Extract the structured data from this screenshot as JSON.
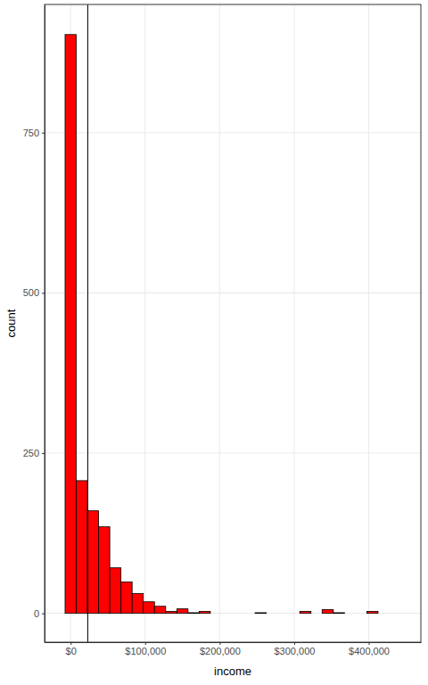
{
  "chart_data": {
    "type": "histogram",
    "x_label": "income",
    "y_label": "count",
    "bins": [
      -7500,
      7500,
      22500,
      37500,
      52500,
      67500,
      82500,
      97500,
      112500,
      127500,
      142500,
      157500,
      172500,
      187500,
      202500,
      217500,
      232500,
      247500,
      262500,
      277500,
      292500,
      307500,
      322500,
      337500,
      352500,
      367500,
      382500,
      397500,
      412500,
      427500,
      442500
    ],
    "values": [
      903,
      207,
      160,
      135,
      71,
      49,
      31,
      18,
      11,
      3,
      7,
      1,
      3,
      0,
      0,
      0,
      0,
      1,
      0,
      0,
      0,
      3,
      0,
      6,
      1,
      0,
      0,
      3,
      0,
      0
    ],
    "color": "#ff0000",
    "vline": 23000,
    "xlim": [
      -35000,
      470000
    ],
    "ylim": [
      -45,
      950
    ],
    "xticks": [
      {
        "value": 0,
        "label": "$0"
      },
      {
        "value": 100000,
        "label": "$100,000"
      },
      {
        "value": 200000,
        "label": "$200,000"
      },
      {
        "value": 300000,
        "label": "$300,000"
      },
      {
        "value": 400000,
        "label": "$400,000"
      }
    ],
    "yticks": [
      0,
      250,
      500,
      750
    ],
    "grid": true
  }
}
